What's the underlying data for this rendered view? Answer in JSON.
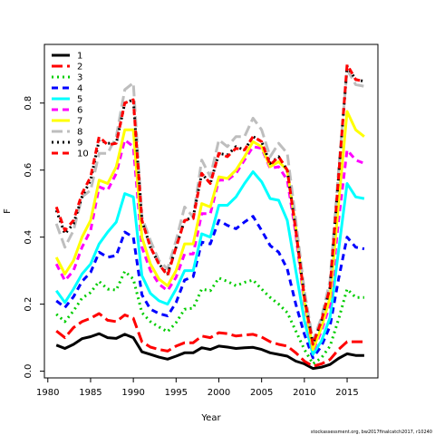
{
  "footnote": "stockassessment.org, bw2017finalcatch2017, r10240",
  "chart_data": {
    "type": "line",
    "title": "",
    "xlabel": "Year",
    "ylabel": "F",
    "xlim": [
      1979.6,
      2018.6
    ],
    "ylim": [
      -0.02,
      0.975
    ],
    "xticks": [
      1980,
      1985,
      1990,
      1995,
      2000,
      2005,
      2010,
      2015
    ],
    "yticks": [
      0.0,
      0.2,
      0.4,
      0.6,
      0.8
    ],
    "grid": false,
    "legend_position": "top-left",
    "x": [
      1981,
      1982,
      1983,
      1984,
      1985,
      1986,
      1987,
      1988,
      1989,
      1990,
      1991,
      1992,
      1993,
      1994,
      1995,
      1996,
      1997,
      1998,
      1999,
      2000,
      2001,
      2002,
      2003,
      2004,
      2005,
      2006,
      2007,
      2008,
      2009,
      2010,
      2011,
      2012,
      2013,
      2014,
      2015,
      2016,
      2017
    ],
    "series": [
      {
        "name": "1",
        "color": "#000000",
        "dash": "solid",
        "values": [
          0.078,
          0.068,
          0.08,
          0.097,
          0.103,
          0.112,
          0.1,
          0.098,
          0.11,
          0.1,
          0.058,
          0.05,
          0.042,
          0.036,
          0.045,
          0.055,
          0.055,
          0.07,
          0.065,
          0.075,
          0.072,
          0.068,
          0.07,
          0.071,
          0.065,
          0.055,
          0.05,
          0.045,
          0.03,
          0.022,
          0.008,
          0.012,
          0.02,
          0.038,
          0.052,
          0.047,
          0.047
        ]
      },
      {
        "name": "2",
        "color": "#ff0000",
        "dash": "longdash",
        "values": [
          0.12,
          0.1,
          0.13,
          0.148,
          0.158,
          0.172,
          0.152,
          0.148,
          0.168,
          0.158,
          0.088,
          0.072,
          0.065,
          0.06,
          0.075,
          0.085,
          0.085,
          0.105,
          0.1,
          0.115,
          0.112,
          0.105,
          0.108,
          0.11,
          0.102,
          0.088,
          0.08,
          0.075,
          0.055,
          0.03,
          0.015,
          0.022,
          0.035,
          0.065,
          0.088,
          0.088,
          0.088
        ]
      },
      {
        "name": "3",
        "color": "#00cd00",
        "dash": "dotted",
        "values": [
          0.17,
          0.148,
          0.18,
          0.218,
          0.235,
          0.268,
          0.245,
          0.242,
          0.298,
          0.275,
          0.175,
          0.148,
          0.132,
          0.118,
          0.145,
          0.185,
          0.188,
          0.245,
          0.24,
          0.278,
          0.268,
          0.255,
          0.265,
          0.272,
          0.245,
          0.22,
          0.2,
          0.175,
          0.12,
          0.065,
          0.022,
          0.04,
          0.075,
          0.155,
          0.245,
          0.22,
          0.22
        ]
      },
      {
        "name": "4",
        "color": "#0000ff",
        "dash": "dashed",
        "values": [
          0.21,
          0.19,
          0.222,
          0.268,
          0.295,
          0.355,
          0.34,
          0.345,
          0.415,
          0.4,
          0.228,
          0.185,
          0.172,
          0.165,
          0.205,
          0.272,
          0.282,
          0.385,
          0.38,
          0.45,
          0.435,
          0.425,
          0.445,
          0.462,
          0.42,
          0.375,
          0.355,
          0.305,
          0.2,
          0.11,
          0.04,
          0.075,
          0.135,
          0.275,
          0.4,
          0.37,
          0.365
        ]
      },
      {
        "name": "5",
        "color": "#00ffff",
        "dash": "solid",
        "values": [
          0.24,
          0.205,
          0.245,
          0.29,
          0.32,
          0.38,
          0.415,
          0.445,
          0.53,
          0.52,
          0.285,
          0.232,
          0.21,
          0.2,
          0.245,
          0.3,
          0.3,
          0.41,
          0.4,
          0.495,
          0.495,
          0.52,
          0.56,
          0.595,
          0.565,
          0.515,
          0.51,
          0.45,
          0.3,
          0.15,
          0.05,
          0.09,
          0.16,
          0.36,
          0.56,
          0.52,
          0.515
        ]
      },
      {
        "name": "6",
        "color": "#ff00ff",
        "dash": "dashed",
        "values": [
          0.32,
          0.27,
          0.3,
          0.37,
          0.42,
          0.55,
          0.54,
          0.59,
          0.69,
          0.67,
          0.37,
          0.3,
          0.26,
          0.24,
          0.28,
          0.35,
          0.35,
          0.47,
          0.47,
          0.57,
          0.57,
          0.59,
          0.63,
          0.67,
          0.665,
          0.605,
          0.61,
          0.57,
          0.41,
          0.2,
          0.06,
          0.12,
          0.2,
          0.45,
          0.66,
          0.63,
          0.62
        ]
      },
      {
        "name": "7",
        "color": "#ffff00",
        "dash": "solid",
        "values": [
          0.34,
          0.29,
          0.33,
          0.4,
          0.45,
          0.57,
          0.56,
          0.61,
          0.72,
          0.72,
          0.4,
          0.32,
          0.275,
          0.255,
          0.3,
          0.38,
          0.38,
          0.5,
          0.49,
          0.58,
          0.575,
          0.6,
          0.64,
          0.685,
          0.67,
          0.61,
          0.625,
          0.6,
          0.43,
          0.21,
          0.065,
          0.13,
          0.22,
          0.5,
          0.775,
          0.72,
          0.7
        ]
      },
      {
        "name": "8",
        "color": "#bebebe",
        "dash": "longdash",
        "values": [
          0.44,
          0.37,
          0.42,
          0.52,
          0.54,
          0.65,
          0.65,
          0.7,
          0.84,
          0.86,
          0.46,
          0.39,
          0.33,
          0.305,
          0.39,
          0.49,
          0.46,
          0.63,
          0.58,
          0.69,
          0.67,
          0.7,
          0.7,
          0.755,
          0.72,
          0.64,
          0.68,
          0.65,
          0.45,
          0.24,
          0.09,
          0.16,
          0.27,
          0.6,
          0.9,
          0.855,
          0.85
        ]
      },
      {
        "name": "9",
        "color": "#000000",
        "dash": "dotted",
        "values": [
          0.48,
          0.41,
          0.44,
          0.52,
          0.57,
          0.69,
          0.68,
          0.68,
          0.8,
          0.81,
          0.45,
          0.37,
          0.32,
          0.29,
          0.37,
          0.45,
          0.46,
          0.59,
          0.56,
          0.65,
          0.645,
          0.67,
          0.66,
          0.7,
          0.685,
          0.62,
          0.64,
          0.6,
          0.42,
          0.22,
          0.08,
          0.15,
          0.25,
          0.58,
          0.91,
          0.87,
          0.865
        ]
      },
      {
        "name": "10",
        "color": "#ff0000",
        "dash": "dashed",
        "values": [
          0.49,
          0.42,
          0.45,
          0.53,
          0.58,
          0.7,
          0.675,
          0.68,
          0.8,
          0.81,
          0.45,
          0.37,
          0.32,
          0.285,
          0.37,
          0.45,
          0.455,
          0.59,
          0.56,
          0.65,
          0.64,
          0.665,
          0.66,
          0.7,
          0.685,
          0.615,
          0.64,
          0.6,
          0.42,
          0.22,
          0.08,
          0.15,
          0.25,
          0.58,
          0.915,
          0.87,
          0.865
        ]
      }
    ]
  }
}
